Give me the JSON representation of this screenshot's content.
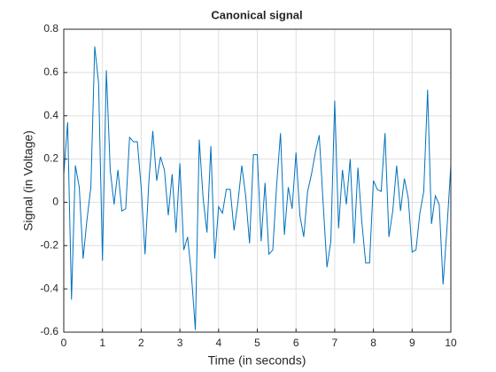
{
  "chart_data": {
    "type": "line",
    "title": "Canonical signal",
    "xlabel": "Time (in seconds)",
    "ylabel": "Signal (in Voltage)",
    "x": [
      0,
      0.1,
      0.2,
      0.3,
      0.4,
      0.5,
      0.6,
      0.7,
      0.8,
      0.9,
      1,
      1.1,
      1.2,
      1.3,
      1.4,
      1.5,
      1.6,
      1.7,
      1.8,
      1.9,
      2,
      2.1,
      2.2,
      2.3,
      2.4,
      2.5,
      2.6,
      2.7,
      2.8,
      2.9,
      3,
      3.1,
      3.2,
      3.3,
      3.4,
      3.5,
      3.6,
      3.7,
      3.8,
      3.9,
      4,
      4.1,
      4.2,
      4.3,
      4.4,
      4.5,
      4.6,
      4.7,
      4.8,
      4.9,
      5,
      5.1,
      5.2,
      5.3,
      5.4,
      5.5,
      5.6,
      5.7,
      5.8,
      5.9,
      6,
      6.1,
      6.2,
      6.3,
      6.4,
      6.5,
      6.6,
      6.7,
      6.8,
      6.9,
      7,
      7.1,
      7.2,
      7.3,
      7.4,
      7.5,
      7.6,
      7.7,
      7.8,
      7.9,
      8,
      8.1,
      8.2,
      8.3,
      8.4,
      8.5,
      8.6,
      8.7,
      8.8,
      8.9,
      9,
      9.1,
      9.2,
      9.3,
      9.4,
      9.5,
      9.6,
      9.7,
      9.8,
      9.9,
      10
    ],
    "series": [
      {
        "color": "#0072bd",
        "values": [
          0.13,
          0.37,
          -0.45,
          0.17,
          0.07,
          -0.26,
          -0.08,
          0.07,
          0.72,
          0.55,
          -0.27,
          0.61,
          0.15,
          -0.01,
          0.15,
          -0.04,
          -0.03,
          0.3,
          0.28,
          0.28,
          0.07,
          -0.24,
          0.1,
          0.33,
          0.1,
          0.21,
          0.15,
          -0.06,
          0.13,
          -0.14,
          0.18,
          -0.22,
          -0.16,
          -0.34,
          -0.59,
          0.29,
          0.02,
          -0.14,
          0.26,
          -0.26,
          -0.02,
          -0.05,
          0.06,
          0.06,
          -0.13,
          0.0,
          0.17,
          0.03,
          -0.19,
          0.22,
          0.22,
          -0.18,
          0.09,
          -0.24,
          -0.22,
          0.08,
          0.32,
          -0.15,
          0.07,
          -0.03,
          0.23,
          -0.06,
          -0.16,
          0.05,
          0.13,
          0.23,
          0.31,
          0.0,
          -0.3,
          -0.18,
          0.47,
          -0.12,
          0.15,
          -0.01,
          0.2,
          -0.19,
          0.16,
          -0.09,
          -0.28,
          -0.28,
          0.1,
          0.06,
          0.05,
          0.32,
          -0.16,
          -0.04,
          0.17,
          -0.04,
          0.11,
          0.02,
          -0.23,
          -0.22,
          -0.05,
          0.05,
          0.52,
          -0.1,
          0.03,
          -0.01,
          -0.38,
          -0.12,
          0.17
        ]
      }
    ],
    "xlim": [
      0,
      10
    ],
    "xticks": [
      0,
      1,
      2,
      3,
      4,
      5,
      6,
      7,
      8,
      9,
      10
    ],
    "ylim": [
      -0.6,
      0.8
    ],
    "yticks": [
      -0.6,
      -0.4,
      -0.2,
      0,
      0.2,
      0.4,
      0.6,
      0.8
    ],
    "grid": true
  }
}
